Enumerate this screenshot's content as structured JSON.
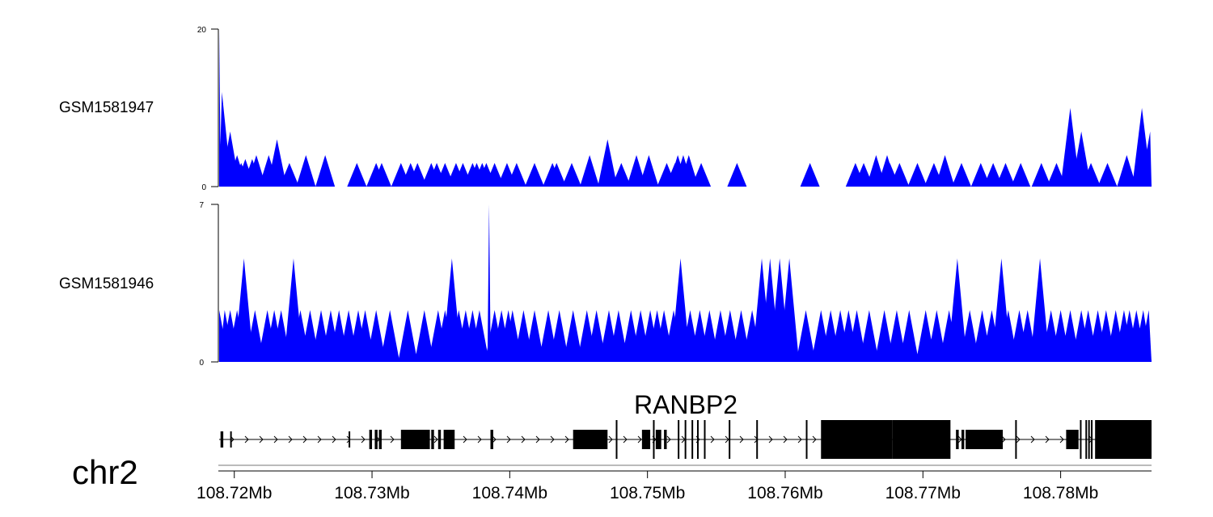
{
  "chart_data": [
    {
      "type": "area",
      "name": "GSM1581947",
      "ylim": [
        0,
        20
      ],
      "ytick_labels": [
        "0",
        "20"
      ],
      "color": "#0000ff",
      "x": [
        108.7189,
        108.7191,
        108.7192,
        108.7197,
        108.7198,
        108.7202,
        108.7205,
        108.7208,
        108.7213,
        108.7216,
        108.7225,
        108.7231,
        108.724,
        108.7252,
        108.7266,
        108.7289,
        108.7303,
        108.7307,
        108.7321,
        108.7328,
        108.7333,
        108.7343,
        108.7347,
        108.7353,
        108.7361,
        108.7366,
        108.7373,
        108.7376,
        108.738,
        108.7383,
        108.7389,
        108.7398,
        108.7405,
        108.7418,
        108.7431,
        108.7434,
        108.7445,
        108.7458,
        108.7471,
        108.7481,
        108.7492,
        108.7501,
        108.7514,
        108.752,
        108.7522,
        108.7526,
        108.753,
        108.7539,
        108.7565,
        108.7618,
        108.7651,
        108.7657,
        108.7666,
        108.7674,
        108.7676,
        108.7683,
        108.7696,
        108.7708,
        108.7716,
        108.7728,
        108.7742,
        108.7751,
        108.776,
        108.7771,
        108.7786,
        108.7797,
        108.7807,
        108.7815,
        108.7822,
        108.7834,
        108.7848,
        108.7859,
        108.7865
      ],
      "y": [
        20,
        12,
        7,
        7,
        5,
        4,
        3,
        3.5,
        3.5,
        4,
        4,
        6,
        3,
        4,
        4,
        3,
        3,
        3,
        3,
        3,
        3,
        3,
        3,
        3,
        3,
        3,
        3,
        3,
        3,
        3,
        3,
        3,
        3,
        3,
        3,
        3,
        3,
        4,
        6,
        3,
        4,
        4,
        3,
        3,
        4,
        4,
        4,
        3,
        3,
        3,
        3,
        3,
        4,
        4,
        3,
        3,
        3,
        3,
        4,
        3,
        3,
        3,
        3,
        3,
        3,
        3,
        10,
        7,
        3,
        3,
        4,
        10,
        7
      ],
      "peak_labels": [
        "20",
        "12",
        "7",
        "7",
        "5",
        "4",
        "3",
        "3.5",
        "3.5",
        "4",
        "4",
        "6",
        "3",
        "4",
        "4",
        "3",
        "3",
        "3",
        "3",
        "3",
        "3",
        "3",
        "3",
        "3",
        "3",
        "3",
        "3",
        "3",
        "3",
        "3",
        "3",
        "3",
        "3",
        "3",
        "3",
        "3",
        "3",
        "4",
        "6",
        "3",
        "4",
        "4",
        "3",
        "3",
        "4",
        "4",
        "4",
        "3",
        "3",
        "3",
        "3",
        "3",
        "4",
        "4",
        "3",
        "3",
        "3",
        "3",
        "4",
        "3",
        "3",
        "3",
        "3",
        "3",
        "3",
        "3",
        "10",
        "7",
        "3",
        "3",
        "4",
        "10",
        "7"
      ]
    },
    {
      "type": "area",
      "name": "GSM1581946",
      "ylim": [
        0,
        7
      ],
      "ytick_labels": [
        "0",
        "7"
      ],
      "color": "#0000ff",
      "x": [
        108.7189,
        108.7193,
        108.7197,
        108.7202,
        108.7207,
        108.7215,
        108.7224,
        108.7229,
        108.7234,
        108.7243,
        108.7248,
        108.7255,
        108.7263,
        108.727,
        108.7276,
        108.7283,
        108.729,
        108.7295,
        108.7303,
        108.7313,
        108.7326,
        108.7338,
        108.7348,
        108.7353,
        108.7358,
        108.7363,
        108.7368,
        108.7373,
        108.7378,
        108.7385,
        108.7389,
        108.7394,
        108.7399,
        108.7402,
        108.741,
        108.7418,
        108.7428,
        108.7436,
        108.7446,
        108.7456,
        108.7463,
        108.7472,
        108.7479,
        108.7488,
        108.7495,
        108.7502,
        108.7507,
        108.7512,
        108.7519,
        108.7524,
        108.7531,
        108.7538,
        108.7545,
        108.7553,
        108.756,
        108.7568,
        108.7576,
        108.7583,
        108.7589,
        108.7596,
        108.7603,
        108.7615,
        108.7626,
        108.7633,
        108.764,
        108.7646,
        108.7652,
        108.7661,
        108.7672,
        108.7681,
        108.769,
        108.7702,
        108.771,
        108.7719,
        108.7725,
        108.7734,
        108.7743,
        108.775,
        108.7757,
        108.7762,
        108.777,
        108.7776,
        108.7785,
        108.7793,
        108.78,
        108.7807,
        108.7815,
        108.782,
        108.7827,
        108.7833,
        108.784,
        108.7846,
        108.785,
        108.7855,
        108.786,
        108.7864
      ],
      "y": [
        2.3,
        2.3,
        2.3,
        2.3,
        4.6,
        2.3,
        2.3,
        2.3,
        2.3,
        4.6,
        2.3,
        2.3,
        2.3,
        2.3,
        2.3,
        2.3,
        2.3,
        2.3,
        2.3,
        2.3,
        2.3,
        2.3,
        2.3,
        2.3,
        4.6,
        2.3,
        2.3,
        2.3,
        2.3,
        7,
        2.3,
        2.3,
        2.3,
        2.3,
        2.3,
        2.3,
        2.3,
        2.3,
        2.3,
        2.3,
        2.3,
        2.3,
        2.3,
        2.3,
        2.3,
        2.3,
        2.3,
        2.3,
        2.3,
        4.6,
        2.3,
        2.3,
        2.3,
        2.3,
        2.3,
        2.3,
        2.3,
        4.6,
        4.6,
        4.6,
        4.6,
        2.3,
        2.3,
        2.3,
        2.3,
        2.3,
        2.3,
        2.3,
        2.3,
        2.3,
        2.3,
        2.3,
        2.3,
        2.3,
        4.6,
        2.3,
        2.3,
        2.3,
        4.6,
        2.3,
        2.3,
        2.3,
        4.6,
        2.3,
        2.3,
        2.3,
        2.3,
        2.3,
        2.3,
        2.3,
        2.3,
        2.3,
        2.3,
        2.3,
        2.3,
        2.3
      ],
      "peak_labels": [
        "2.3",
        "2.3",
        "2.3",
        "2.3",
        "4.6",
        "2.3",
        "2.3",
        "2.3",
        "2.3",
        "4.6",
        "2.3",
        "2.3",
        "2.3",
        "2.3",
        "2.3",
        "2.3",
        "2.3",
        "2.3",
        "2.3",
        "2.3",
        "2.3",
        "2.3",
        "2.3",
        "2.3",
        "4.6",
        "2.3",
        "2.3",
        "2.3",
        "2.3",
        "7",
        "2.3",
        "2.3",
        "2.3",
        "2.3",
        "2.3",
        "2.3",
        "2.3",
        "2.3",
        "2.3",
        "2.3",
        "2.3",
        "2.3",
        "2.3",
        "2.3",
        "2.3",
        "2.3",
        "2.3",
        "2.3",
        "2.3",
        "4.6",
        "2.3",
        "2.3",
        "2.3",
        "2.3",
        "2.3",
        "2.3",
        "2.3",
        "4.6",
        "4.6",
        "4.6",
        "4.6",
        "2.3",
        "2.3",
        "2.3",
        "2.3",
        "2.3",
        "2.3",
        "2.3",
        "2.3",
        "2.3",
        "2.3",
        "2.3",
        "2.3",
        "2.3",
        "4.6",
        "2.3",
        "2.3",
        "2.3",
        "4.6",
        "2.3",
        "2.3",
        "2.3",
        "4.6",
        "2.3",
        "2.3",
        "2.3",
        "2.3",
        "2.3",
        "2.3",
        "2.3",
        "2.3",
        "2.3",
        "2.3",
        "2.3",
        "2.3",
        "2.3"
      ]
    }
  ],
  "gene": {
    "name": "RANBP2",
    "strand": "+",
    "start": 108.7189,
    "end": 108.7866,
    "exons": [
      {
        "start": 108.719,
        "end": 108.7192,
        "kind": "utr"
      },
      {
        "start": 108.7197,
        "end": 108.7198,
        "kind": "utr"
      },
      {
        "start": 108.7283,
        "end": 108.7284,
        "kind": "utr"
      },
      {
        "start": 108.7298,
        "end": 108.73,
        "kind": "cds"
      },
      {
        "start": 108.7302,
        "end": 108.7304,
        "kind": "cds"
      },
      {
        "start": 108.7305,
        "end": 108.7307,
        "kind": "cds"
      },
      {
        "start": 108.7321,
        "end": 108.7342,
        "kind": "cds"
      },
      {
        "start": 108.7343,
        "end": 108.7345,
        "kind": "cds"
      },
      {
        "start": 108.7348,
        "end": 108.735,
        "kind": "cds"
      },
      {
        "start": 108.7352,
        "end": 108.736,
        "kind": "cds"
      },
      {
        "start": 108.7386,
        "end": 108.7388,
        "kind": "cds"
      },
      {
        "start": 108.7446,
        "end": 108.7471,
        "kind": "cds"
      },
      {
        "start": 108.7477,
        "end": 108.7478,
        "kind": "cds"
      },
      {
        "start": 108.7496,
        "end": 108.7502,
        "kind": "cds"
      },
      {
        "start": 108.7504,
        "end": 108.7505,
        "kind": "cds"
      },
      {
        "start": 108.7506,
        "end": 108.751,
        "kind": "cds"
      },
      {
        "start": 108.7512,
        "end": 108.7514,
        "kind": "cds"
      },
      {
        "start": 108.7522,
        "end": 108.7523,
        "kind": "cds"
      },
      {
        "start": 108.7527,
        "end": 108.7528,
        "kind": "cds"
      },
      {
        "start": 108.7532,
        "end": 108.7533,
        "kind": "cds"
      },
      {
        "start": 108.7536,
        "end": 108.7537,
        "kind": "cds"
      },
      {
        "start": 108.7541,
        "end": 108.7542,
        "kind": "cds"
      },
      {
        "start": 108.7559,
        "end": 108.756,
        "kind": "cds"
      },
      {
        "start": 108.7579,
        "end": 108.758,
        "kind": "cds"
      },
      {
        "start": 108.7615,
        "end": 108.7616,
        "kind": "cds"
      },
      {
        "start": 108.7626,
        "end": 108.7678,
        "kind": "cds"
      },
      {
        "start": 108.7678,
        "end": 108.772,
        "kind": "cds"
      },
      {
        "start": 108.7724,
        "end": 108.7726,
        "kind": "cds"
      },
      {
        "start": 108.7728,
        "end": 108.773,
        "kind": "cds"
      },
      {
        "start": 108.7731,
        "end": 108.7758,
        "kind": "cds"
      },
      {
        "start": 108.7767,
        "end": 108.7768,
        "kind": "cds"
      },
      {
        "start": 108.7804,
        "end": 108.7813,
        "kind": "cds"
      },
      {
        "start": 108.7814,
        "end": 108.7815,
        "kind": "cds"
      },
      {
        "start": 108.7818,
        "end": 108.7819,
        "kind": "cds"
      },
      {
        "start": 108.782,
        "end": 108.7821,
        "kind": "cds"
      },
      {
        "start": 108.7822,
        "end": 108.7823,
        "kind": "cds"
      },
      {
        "start": 108.7825,
        "end": 108.7866,
        "kind": "cds"
      }
    ]
  },
  "axis": {
    "chromosome": "chr2",
    "xlim": [
      108.7189,
      108.7866
    ],
    "ticks": [
      108.72,
      108.73,
      108.74,
      108.75,
      108.76,
      108.77,
      108.78
    ],
    "tick_labels": [
      "108.72Mb",
      "108.73Mb",
      "108.74Mb",
      "108.75Mb",
      "108.76Mb",
      "108.77Mb",
      "108.78Mb"
    ]
  },
  "colors": {
    "signal": "#0000ff",
    "gene": "#000000",
    "axis": "#000000",
    "baseline": "#777777"
  }
}
